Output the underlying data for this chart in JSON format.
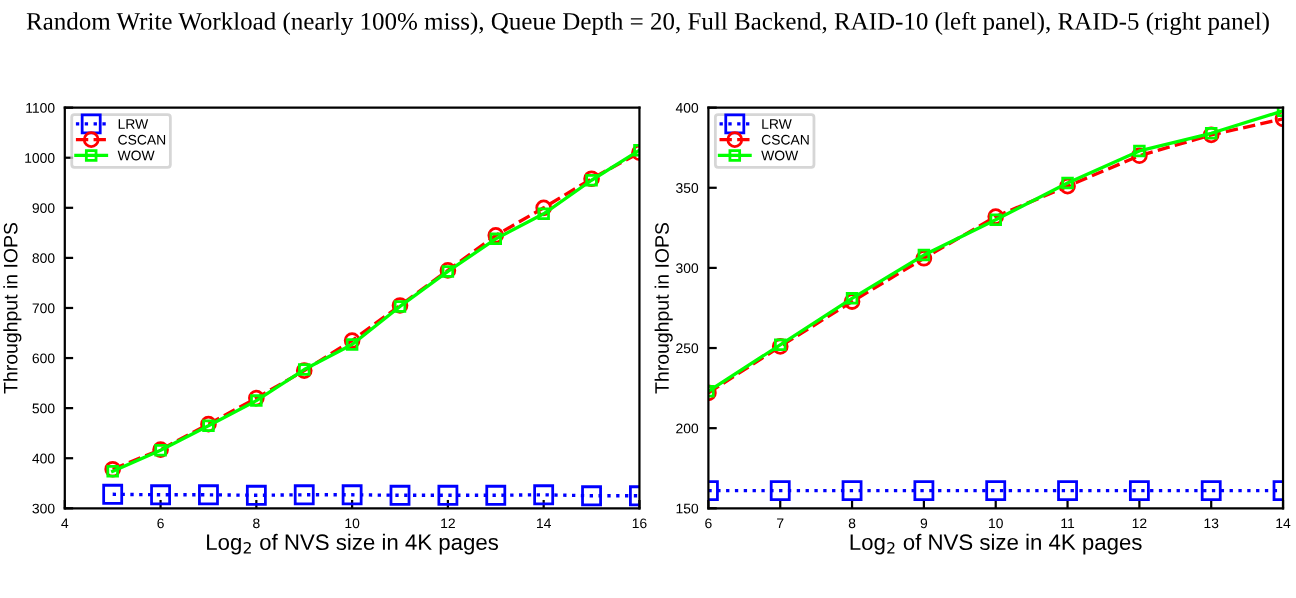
{
  "chart_data": [
    {
      "type": "line",
      "title": "Random Write Workload (nearly 100% miss), Queue Depth = 20, Full Backend, RAID-10 (left panel), RAID-5 (right panel)",
      "xlabel": "Log$_{2}$ of NVS size in 4K pages",
      "ylabel": "Throughput in IOPS",
      "x": [
        5,
        6,
        7,
        8,
        9,
        10,
        11,
        12,
        13,
        14,
        15,
        16
      ],
      "xlim": [
        4,
        16
      ],
      "xticks": [
        4,
        6,
        8,
        10,
        12,
        14,
        16
      ],
      "ylim": [
        300,
        1100
      ],
      "yticks": [
        300,
        400,
        500,
        600,
        700,
        800,
        900,
        1000,
        1100
      ],
      "legend": "top left",
      "grid": false,
      "series": [
        {
          "name": "LRW",
          "color": "#0000ff",
          "marker": "square",
          "line_style": "dotted",
          "values": [
            328,
            327,
            327,
            326,
            327,
            327,
            326,
            326,
            326,
            327,
            325,
            325
          ]
        },
        {
          "name": "CSCAN",
          "color": "#ff0000",
          "marker": "circle",
          "line_style": "dashed",
          "values": [
            378,
            417,
            468,
            520,
            575,
            635,
            705,
            775,
            845,
            900,
            958,
            1010
          ]
        },
        {
          "name": "WOW",
          "color": "#00ff00",
          "marker": "square",
          "line_style": "solid",
          "values": [
            374,
            416,
            465,
            515,
            577,
            627,
            703,
            773,
            838,
            888,
            955,
            1015
          ]
        }
      ]
    },
    {
      "type": "line",
      "xlabel": "Log$_{2}$ of NVS size in 4K pages",
      "ylabel": "Throughput in IOPS",
      "x": [
        6,
        7,
        8,
        9,
        10,
        11,
        12,
        13,
        14
      ],
      "xlim": [
        6,
        14
      ],
      "xticks": [
        6,
        7,
        8,
        9,
        10,
        11,
        12,
        13,
        14
      ],
      "ylim": [
        150,
        400
      ],
      "yticks": [
        150,
        200,
        250,
        300,
        350,
        400
      ],
      "legend": "top left",
      "grid": false,
      "series": [
        {
          "name": "LRW",
          "color": "#0000ff",
          "marker": "square",
          "line_style": "dotted",
          "values": [
            161,
            161,
            161,
            161,
            161,
            161,
            161,
            161,
            161
          ]
        },
        {
          "name": "CSCAN",
          "color": "#ff0000",
          "marker": "circle",
          "line_style": "dashed",
          "values": [
            222,
            251,
            279,
            306,
            332,
            351,
            370,
            383,
            393
          ]
        },
        {
          "name": "WOW",
          "color": "#00ff00",
          "marker": "square",
          "line_style": "solid",
          "values": [
            223,
            252,
            281,
            308,
            330,
            353,
            373,
            384,
            398
          ]
        }
      ]
    }
  ]
}
